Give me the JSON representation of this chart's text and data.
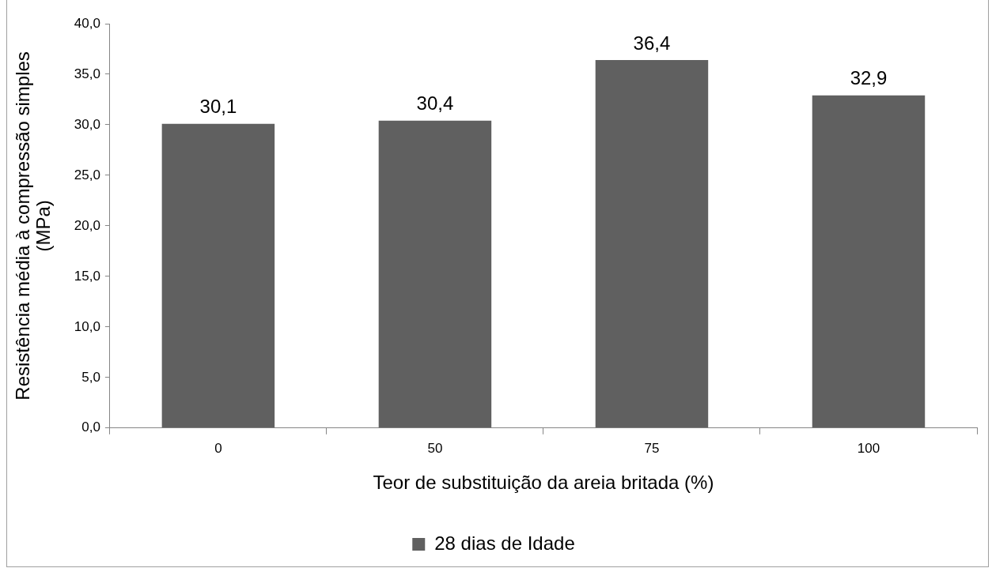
{
  "chart_data": {
    "type": "bar",
    "xlabel": "Teor de substituição da areia britada (%)",
    "ylabel": "Resistência média à compressão simples (MPa)",
    "categories": [
      "0",
      "50",
      "75",
      "100"
    ],
    "series": [
      {
        "name": "28 dias de Idade",
        "color": "#606060",
        "values": [
          30.1,
          30.4,
          36.4,
          32.9
        ],
        "value_labels": [
          "30,1",
          "30,4",
          "36,4",
          "32,9"
        ]
      }
    ],
    "ylim": [
      0,
      40
    ],
    "yticks": [
      {
        "value": 0,
        "label": "0,0"
      },
      {
        "value": 5,
        "label": "5,0"
      },
      {
        "value": 10,
        "label": "10,0"
      },
      {
        "value": 15,
        "label": "15,0"
      },
      {
        "value": 20,
        "label": "20,0"
      },
      {
        "value": 25,
        "label": "25,0"
      },
      {
        "value": 30,
        "label": "30,0"
      },
      {
        "value": 35,
        "label": "35,0"
      },
      {
        "value": 40,
        "label": "40,0"
      }
    ],
    "grid": false,
    "legend": "bottom"
  }
}
